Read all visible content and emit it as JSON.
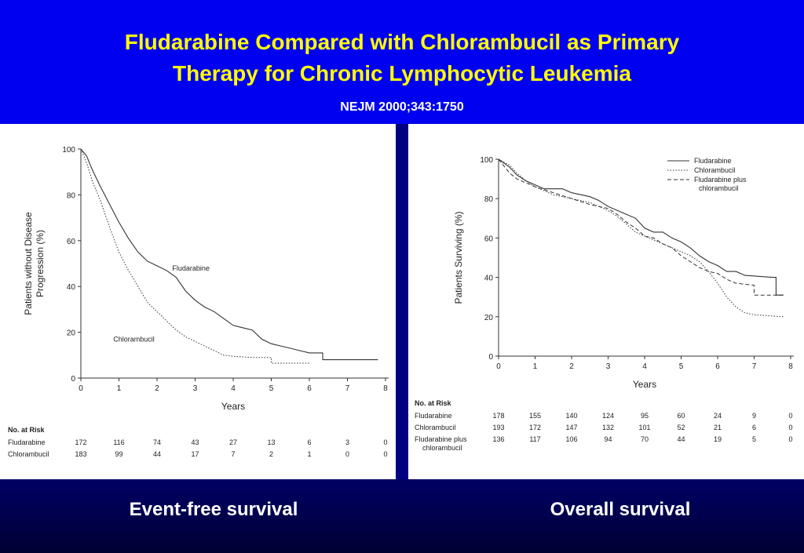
{
  "title_line1": "Fludarabine Compared with Chlorambucil as Primary",
  "title_line2": "Therapy for Chronic Lymphocytic Leukemia",
  "citation": "NEJM 2000;343:1750",
  "captions": {
    "left": "Event-free survival",
    "right": "Overall survival"
  },
  "colors": {
    "header_bg": "#0000f0",
    "title": "#ffff00",
    "bottom_bg": "#000033"
  },
  "chart_data": [
    {
      "type": "line",
      "xlabel": "Years",
      "ylabel_line1": "Patients without Disease",
      "ylabel_line2": "Progression (%)",
      "xlim": [
        0,
        8
      ],
      "ylim": [
        0,
        100
      ],
      "xticks": [
        "0",
        "1",
        "2",
        "3",
        "4",
        "5",
        "6",
        "7",
        "8"
      ],
      "yticks": [
        "0",
        "20",
        "40",
        "60",
        "80",
        "100"
      ],
      "series": [
        {
          "name": "Fludarabine",
          "style": "solid",
          "points": [
            [
              0,
              100
            ],
            [
              0.15,
              97
            ],
            [
              0.3,
              91
            ],
            [
              0.5,
              84
            ],
            [
              0.75,
              76
            ],
            [
              1.0,
              68
            ],
            [
              1.25,
              61
            ],
            [
              1.5,
              55
            ],
            [
              1.75,
              51
            ],
            [
              2.0,
              49
            ],
            [
              2.25,
              47
            ],
            [
              2.5,
              44
            ],
            [
              2.75,
              38
            ],
            [
              3.0,
              34
            ],
            [
              3.25,
              31
            ],
            [
              3.5,
              29
            ],
            [
              3.75,
              26
            ],
            [
              4.0,
              23
            ],
            [
              4.25,
              22
            ],
            [
              4.5,
              21
            ],
            [
              4.75,
              17
            ],
            [
              5.0,
              15
            ],
            [
              5.25,
              14
            ],
            [
              5.5,
              13
            ],
            [
              5.75,
              12
            ],
            [
              6.0,
              11
            ],
            [
              6.35,
              11
            ],
            [
              6.35,
              8
            ],
            [
              7.8,
              8
            ]
          ]
        },
        {
          "name": "Chlorambucil",
          "style": "dotted",
          "points": [
            [
              0,
              100
            ],
            [
              0.15,
              94
            ],
            [
              0.3,
              86
            ],
            [
              0.5,
              78
            ],
            [
              0.75,
              66
            ],
            [
              1.0,
              55
            ],
            [
              1.25,
              47
            ],
            [
              1.5,
              40
            ],
            [
              1.75,
              33
            ],
            [
              2.0,
              29
            ],
            [
              2.25,
              25
            ],
            [
              2.5,
              21
            ],
            [
              2.75,
              18
            ],
            [
              3.0,
              16
            ],
            [
              3.25,
              14
            ],
            [
              3.5,
              12
            ],
            [
              3.75,
              10
            ],
            [
              4.0,
              9.5
            ],
            [
              4.5,
              9
            ],
            [
              5.0,
              9
            ],
            [
              5.0,
              6.5
            ],
            [
              6.0,
              6.5
            ]
          ]
        }
      ],
      "annotations": [
        {
          "text": "Fludarabine",
          "x": 2.4,
          "y": 47
        },
        {
          "text": "Chlorambucil",
          "x": 0.85,
          "y": 16
        }
      ],
      "risk_table": {
        "heading": "No. at Risk",
        "rows": [
          {
            "label": "Fludarabine",
            "values": [
              "172",
              "116",
              "74",
              "43",
              "27",
              "13",
              "6",
              "3",
              "0"
            ]
          },
          {
            "label": "Chlorambucil",
            "values": [
              "183",
              "99",
              "44",
              "17",
              "7",
              "2",
              "1",
              "0",
              "0"
            ]
          }
        ]
      }
    },
    {
      "type": "line",
      "xlabel": "Years",
      "ylabel_line1": "Patients Surviving (%)",
      "xlim": [
        0,
        8
      ],
      "ylim": [
        0,
        100
      ],
      "xticks": [
        "0",
        "1",
        "2",
        "3",
        "4",
        "5",
        "6",
        "7",
        "8"
      ],
      "yticks": [
        "0",
        "20",
        "40",
        "60",
        "80",
        "100"
      ],
      "legend_position": "top-right",
      "series": [
        {
          "name": "Fludarabine",
          "style": "solid",
          "points": [
            [
              0,
              100
            ],
            [
              0.3,
              96
            ],
            [
              0.5,
              92
            ],
            [
              0.75,
              89
            ],
            [
              1.0,
              87
            ],
            [
              1.25,
              85
            ],
            [
              1.75,
              85
            ],
            [
              2.0,
              83
            ],
            [
              2.5,
              81
            ],
            [
              2.75,
              79
            ],
            [
              3.0,
              76
            ],
            [
              3.25,
              74
            ],
            [
              3.5,
              72
            ],
            [
              3.75,
              70
            ],
            [
              4.0,
              65
            ],
            [
              4.25,
              63
            ],
            [
              4.5,
              63
            ],
            [
              4.75,
              60
            ],
            [
              5.0,
              58
            ],
            [
              5.25,
              55
            ],
            [
              5.5,
              51
            ],
            [
              5.75,
              48
            ],
            [
              6.0,
              46
            ],
            [
              6.25,
              43
            ],
            [
              6.5,
              43
            ],
            [
              6.75,
              41
            ],
            [
              7.5,
              40
            ],
            [
              7.6,
              40
            ],
            [
              7.6,
              31
            ],
            [
              7.8,
              31
            ]
          ]
        },
        {
          "name": "Chlorambucil",
          "style": "dotted",
          "points": [
            [
              0,
              100
            ],
            [
              0.3,
              97
            ],
            [
              0.5,
              93
            ],
            [
              0.75,
              89
            ],
            [
              1.0,
              86
            ],
            [
              1.25,
              84
            ],
            [
              1.5,
              82
            ],
            [
              1.75,
              81
            ],
            [
              2.0,
              80
            ],
            [
              2.5,
              78
            ],
            [
              3.0,
              74
            ],
            [
              3.25,
              71
            ],
            [
              3.5,
              67
            ],
            [
              3.75,
              63
            ],
            [
              4.0,
              61
            ],
            [
              4.5,
              57
            ],
            [
              5.0,
              53
            ],
            [
              5.25,
              51
            ],
            [
              5.5,
              48
            ],
            [
              5.75,
              43
            ],
            [
              6.0,
              37
            ],
            [
              6.25,
              30
            ],
            [
              6.5,
              25
            ],
            [
              6.75,
              22
            ],
            [
              7.0,
              21
            ],
            [
              7.8,
              20
            ]
          ]
        },
        {
          "name": "Fludarabine plus chlorambucil",
          "style": "dashed",
          "points": [
            [
              0,
              100
            ],
            [
              0.3,
              93
            ],
            [
              0.5,
              90
            ],
            [
              0.75,
              88
            ],
            [
              1.0,
              86
            ],
            [
              1.5,
              83
            ],
            [
              2.0,
              80
            ],
            [
              2.5,
              77
            ],
            [
              3.0,
              75
            ],
            [
              3.25,
              72
            ],
            [
              3.5,
              68
            ],
            [
              3.75,
              65
            ],
            [
              4.0,
              61
            ],
            [
              4.25,
              60
            ],
            [
              4.5,
              57
            ],
            [
              4.75,
              55
            ],
            [
              5.0,
              51
            ],
            [
              5.25,
              48
            ],
            [
              5.5,
              45
            ],
            [
              5.75,
              43
            ],
            [
              6.0,
              42
            ],
            [
              6.25,
              39
            ],
            [
              6.5,
              37
            ],
            [
              7.0,
              36
            ],
            [
              7.0,
              31
            ],
            [
              7.8,
              31
            ]
          ]
        }
      ],
      "risk_table": {
        "heading": "No. at Risk",
        "rows": [
          {
            "label": "Fludarabine",
            "values": [
              "178",
              "155",
              "140",
              "124",
              "95",
              "60",
              "24",
              "9",
              "0"
            ]
          },
          {
            "label": "Chlorambucil",
            "values": [
              "193",
              "172",
              "147",
              "132",
              "101",
              "52",
              "21",
              "6",
              "0"
            ]
          },
          {
            "label": "Fludarabine plus",
            "label2": "chlorambucil",
            "values": [
              "136",
              "117",
              "106",
              "94",
              "70",
              "44",
              "19",
              "5",
              "0"
            ]
          }
        ]
      }
    }
  ]
}
